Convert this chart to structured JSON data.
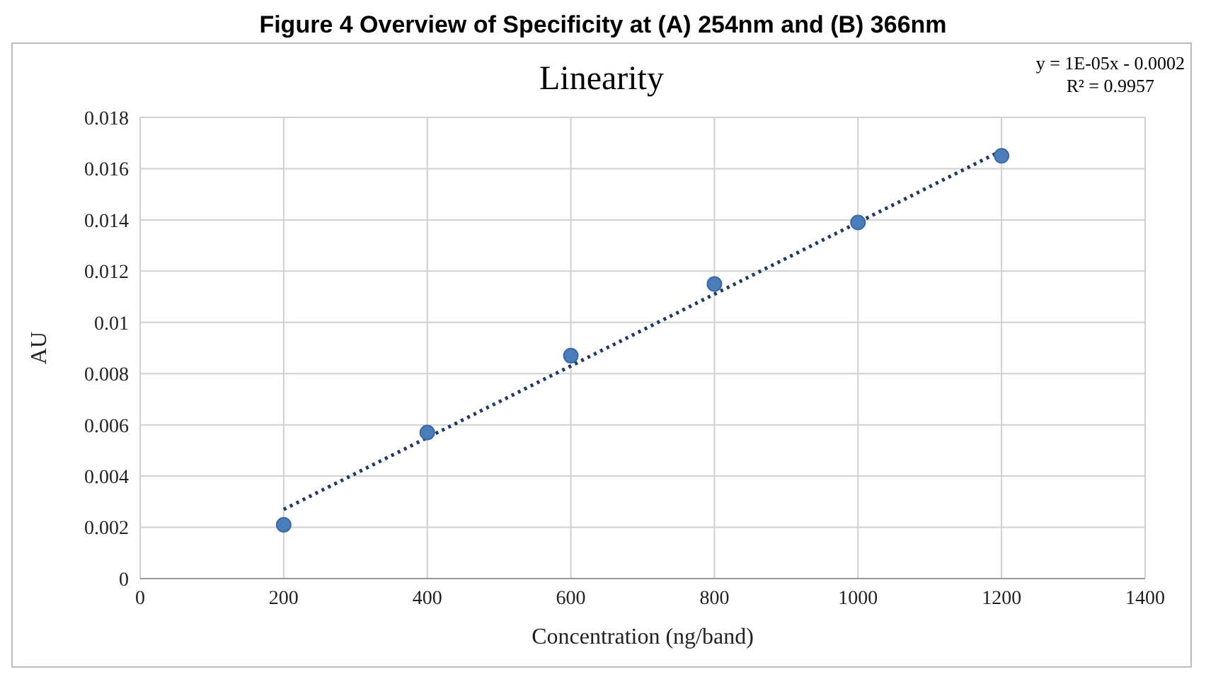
{
  "chart_data": {
    "type": "scatter",
    "title": "Linearity",
    "xlabel": "Concentration (ng/band)",
    "ylabel": "AU",
    "annotations": [
      "Figure 4 Overview of Specificity at (A) 254nm and (B) 366nm",
      "y = 1E-05x - 0.0002",
      "R² = 0.9957"
    ],
    "xlim": [
      0,
      1400
    ],
    "xticks": [
      0,
      200,
      400,
      600,
      800,
      1000,
      1200,
      1400
    ],
    "ylim": [
      0,
      0.018
    ],
    "yticks": [
      0,
      0.002,
      0.004,
      0.006,
      0.008,
      0.01,
      0.012,
      0.014,
      0.016,
      0.018
    ],
    "grid": true,
    "legend": false,
    "series": [
      {
        "color": "#4a7ebb",
        "marker": "circle",
        "x": [
          200,
          400,
          600,
          800,
          1000,
          1200
        ],
        "values": [
          0.0021,
          0.0057,
          0.0087,
          0.0115,
          0.0139,
          0.0165
        ]
      },
      {
        "type": "line",
        "color": "#1f3864",
        "marker": "none",
        "line_style": "dotted",
        "x": [
          200,
          1200
        ],
        "values": [
          0.0027,
          0.0167
        ]
      }
    ]
  }
}
